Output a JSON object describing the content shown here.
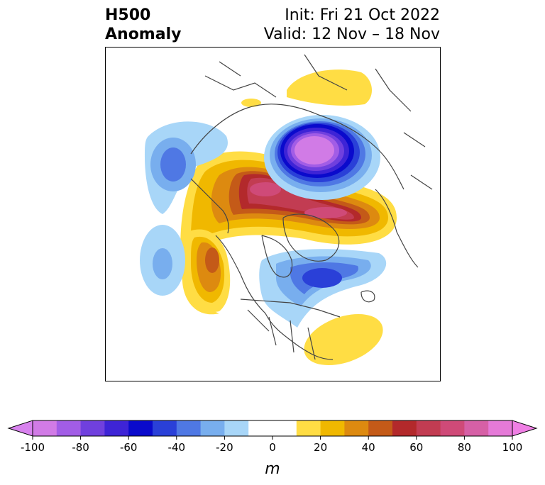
{
  "title": {
    "left_line1": "H500",
    "left_line2": "Anomaly",
    "right_line1": "Init: Fri 21 Oct 2022",
    "right_line2": "Valid: 12 Nov – 18 Nov"
  },
  "colorbar": {
    "unit": "m",
    "ticks": [
      "-100",
      "-80",
      "-60",
      "-40",
      "-20",
      "0",
      "20",
      "40",
      "60",
      "80",
      "100"
    ],
    "levels": [
      -100,
      -90,
      -80,
      -70,
      -60,
      -50,
      -40,
      -30,
      -20,
      -10,
      10,
      20,
      30,
      40,
      50,
      60,
      70,
      80,
      90,
      100
    ],
    "colors": [
      "#d17be6",
      "#a25de6",
      "#7040de",
      "#3e24d6",
      "#0a0acc",
      "#2a40d8",
      "#4f78e4",
      "#78aeee",
      "#a8d6f8",
      "#ffffff",
      "#ffdd44",
      "#f0b800",
      "#dd8a10",
      "#c45a18",
      "#b3292b",
      "#c23c52",
      "#cf4a78",
      "#d660a6",
      "#e57ad8"
    ],
    "under_color": "#d882ee",
    "over_color": "#ef7fe4"
  }
}
